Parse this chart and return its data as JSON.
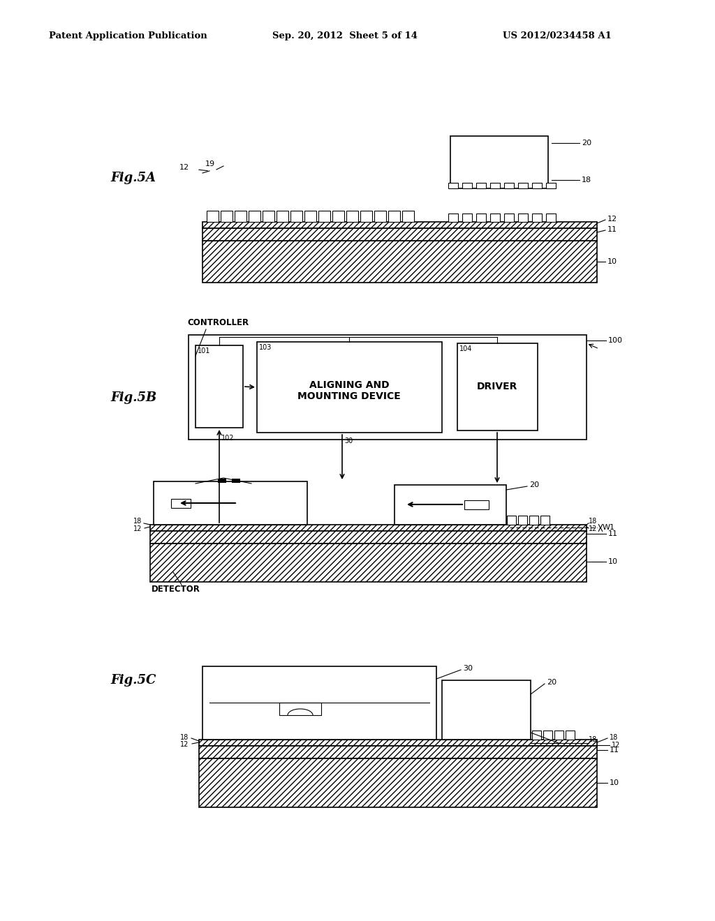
{
  "bg_color": "#ffffff",
  "header_left": "Patent Application Publication",
  "header_center": "Sep. 20, 2012  Sheet 5 of 14",
  "header_right": "US 2012/0234458 A1",
  "fig5A_label": "Fig.5A",
  "fig5B_label": "Fig.5B",
  "fig5C_label": "Fig.5C",
  "label_controller": "CONTROLLER",
  "label_detector": "DETECTOR",
  "label_aligning": "ALIGNING AND\nMOUNTING DEVICE",
  "label_driver": "DRIVER",
  "label_w1": "W1"
}
